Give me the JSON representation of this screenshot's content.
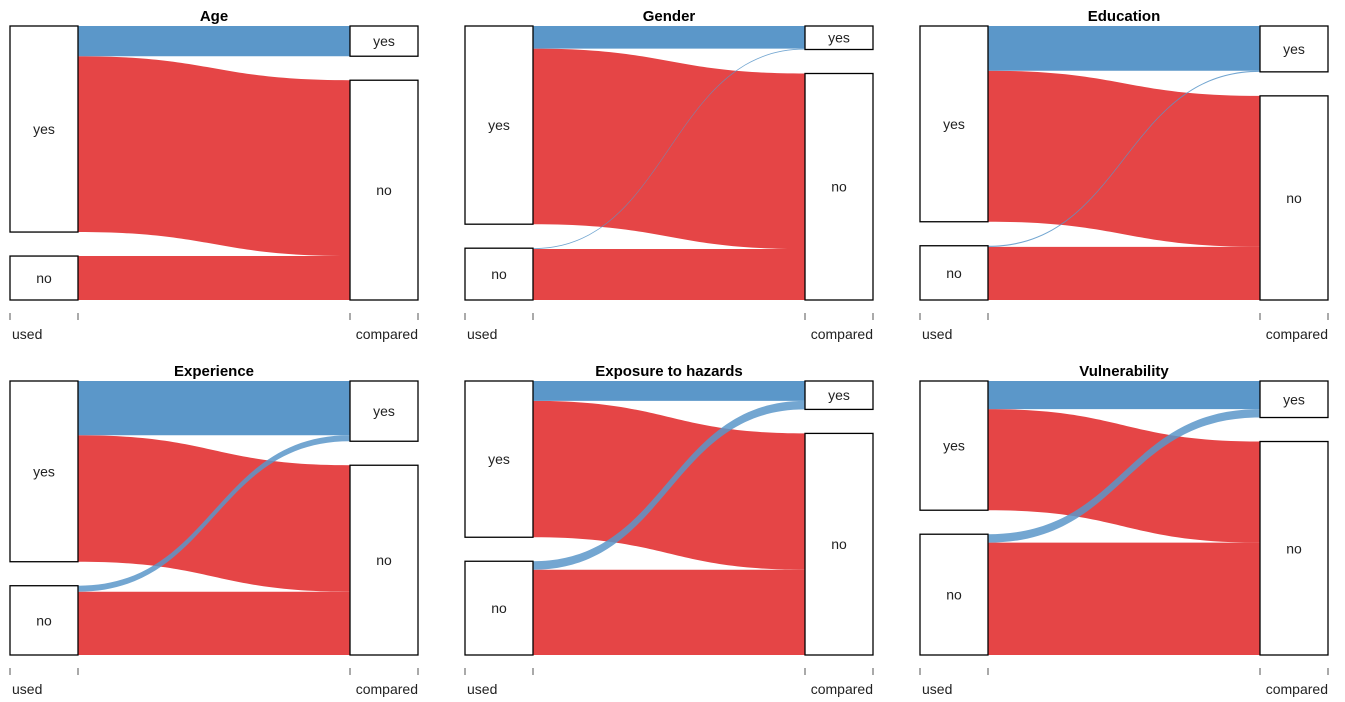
{
  "chart_data": [
    {
      "type": "alluvial",
      "title": "Age",
      "axes": [
        "used",
        "compared"
      ],
      "categories": [
        "yes",
        "no"
      ],
      "flows": [
        {
          "used": "yes",
          "compared": "yes",
          "value": 0.11
        },
        {
          "used": "yes",
          "compared": "no",
          "value": 0.64
        },
        {
          "used": "no",
          "compared": "yes",
          "value": 0.0
        },
        {
          "used": "no",
          "compared": "no",
          "value": 0.16
        }
      ]
    },
    {
      "type": "alluvial",
      "title": "Gender",
      "axes": [
        "used",
        "compared"
      ],
      "categories": [
        "yes",
        "no"
      ],
      "flows": [
        {
          "used": "yes",
          "compared": "yes",
          "value": 0.08
        },
        {
          "used": "yes",
          "compared": "no",
          "value": 0.62
        },
        {
          "used": "no",
          "compared": "yes",
          "value": 0.003
        },
        {
          "used": "no",
          "compared": "no",
          "value": 0.18
        }
      ]
    },
    {
      "type": "alluvial",
      "title": "Education",
      "axes": [
        "used",
        "compared"
      ],
      "categories": [
        "yes",
        "no"
      ],
      "flows": [
        {
          "used": "yes",
          "compared": "yes",
          "value": 0.16
        },
        {
          "used": "yes",
          "compared": "no",
          "value": 0.54
        },
        {
          "used": "no",
          "compared": "yes",
          "value": 0.004
        },
        {
          "used": "no",
          "compared": "no",
          "value": 0.19
        }
      ]
    },
    {
      "type": "alluvial",
      "title": "Experience",
      "axes": [
        "used",
        "compared"
      ],
      "categories": [
        "yes",
        "no"
      ],
      "flows": [
        {
          "used": "yes",
          "compared": "yes",
          "value": 0.18
        },
        {
          "used": "yes",
          "compared": "no",
          "value": 0.42
        },
        {
          "used": "no",
          "compared": "yes",
          "value": 0.02
        },
        {
          "used": "no",
          "compared": "no",
          "value": 0.21
        }
      ]
    },
    {
      "type": "alluvial",
      "title": "Exposure to hazards",
      "axes": [
        "used",
        "compared"
      ],
      "categories": [
        "yes",
        "no"
      ],
      "flows": [
        {
          "used": "yes",
          "compared": "yes",
          "value": 0.07
        },
        {
          "used": "yes",
          "compared": "no",
          "value": 0.48
        },
        {
          "used": "no",
          "compared": "yes",
          "value": 0.03
        },
        {
          "used": "no",
          "compared": "no",
          "value": 0.3
        }
      ]
    },
    {
      "type": "alluvial",
      "title": "Vulnerability",
      "axes": [
        "used",
        "compared"
      ],
      "categories": [
        "yes",
        "no"
      ],
      "flows": [
        {
          "used": "yes",
          "compared": "yes",
          "value": 0.1
        },
        {
          "used": "yes",
          "compared": "no",
          "value": 0.36
        },
        {
          "used": "no",
          "compared": "yes",
          "value": 0.03
        },
        {
          "used": "no",
          "compared": "no",
          "value": 0.4
        }
      ]
    }
  ],
  "colors": {
    "yes_flow": "#5B97C9",
    "no_flow": "#E54546",
    "box_fill": "#ffffff",
    "box_stroke": "#000000"
  }
}
